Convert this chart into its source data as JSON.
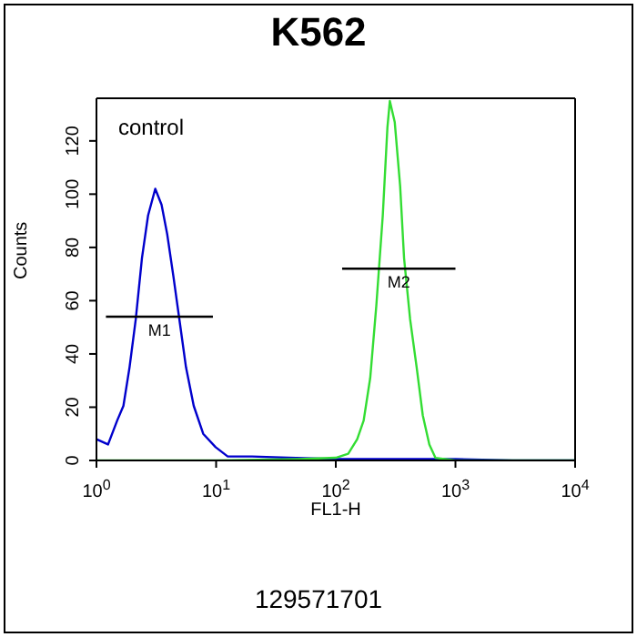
{
  "chart_data": {
    "type": "line",
    "title": "K562",
    "xlabel": "FL1-H",
    "ylabel": "Counts",
    "log": "x",
    "xlim": [
      1,
      10000
    ],
    "ylim": [
      0,
      136
    ],
    "xticks": [
      {
        "value": 1,
        "label": "10$^{0}$"
      },
      {
        "value": 10,
        "label": "10$^{1}$"
      },
      {
        "value": 100,
        "label": "10$^{2}$"
      },
      {
        "value": 1000,
        "label": "10$^{3}$"
      },
      {
        "value": 10000,
        "label": "10$^{4}$"
      }
    ],
    "yticks": [
      0,
      20,
      40,
      60,
      80,
      100,
      120
    ],
    "marker": "none",
    "line_style": "solid",
    "series": [
      {
        "color": "#0000cc",
        "x": [
          1,
          1.25,
          1.49,
          1.68,
          1.89,
          2.13,
          2.4,
          2.7,
          3.1,
          3.5,
          3.9,
          4.4,
          5,
          5.6,
          6.5,
          7.8,
          9.9,
          12.5,
          20,
          40,
          100,
          300,
          1000,
          3000,
          10000
        ],
        "values": [
          8,
          6,
          15,
          20.5,
          35,
          53,
          76,
          92,
          102,
          96,
          85,
          69,
          51,
          35,
          20.5,
          10,
          5,
          1.5,
          1.5,
          1,
          0.5,
          0.5,
          0.5,
          0,
          0
        ]
      },
      {
        "color": "#33dd33",
        "x": [
          1,
          10,
          50,
          100,
          127,
          151,
          171,
          194,
          218,
          247,
          270,
          283,
          311,
          345,
          372,
          418,
          474,
          533,
          605,
          680,
          1000,
          3000,
          10000
        ],
        "values": [
          0,
          0,
          0.5,
          1,
          2.5,
          8,
          15,
          31,
          58,
          92,
          125,
          135,
          127,
          103,
          76,
          53,
          35,
          17,
          6,
          1,
          0,
          0,
          0
        ]
      },
      {
        "name": "M1",
        "color": "#000000",
        "x": [
          1.2,
          9.4
        ],
        "values": [
          54,
          54
        ]
      },
      {
        "name": "M2",
        "color": "#000000",
        "x": [
          113,
          1000
        ],
        "values": [
          72,
          72
        ]
      }
    ],
    "annotations": [
      "control",
      "129571701"
    ]
  }
}
